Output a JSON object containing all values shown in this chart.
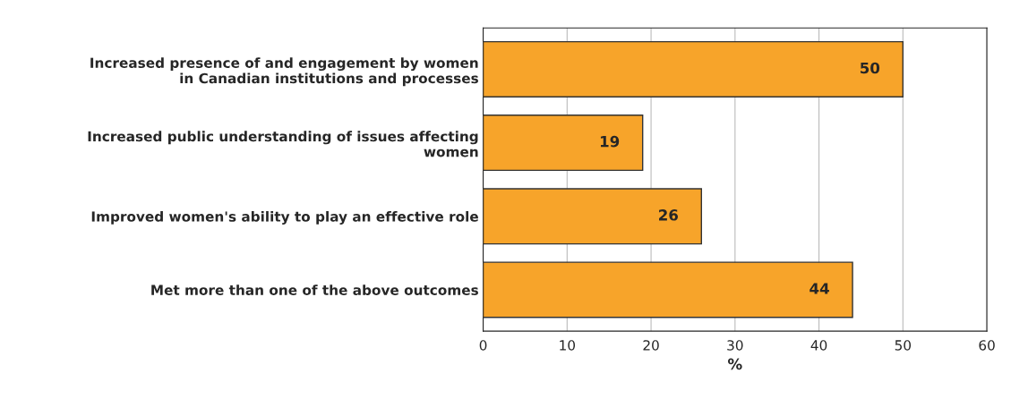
{
  "chart_data": {
    "type": "bar",
    "orientation": "horizontal",
    "categories": [
      "Increased presence of and engagement by women\nin Canadian institutions and processes",
      "Increased public understanding of issues affecting\nwomen",
      "Improved women's ability to play an effective role",
      "Met more than one of the above outcomes"
    ],
    "values": [
      50,
      19,
      26,
      44
    ],
    "color": "#f7a42a",
    "xlim": [
      0,
      60
    ],
    "xticks": [
      0,
      10,
      20,
      30,
      40,
      50,
      60
    ],
    "xlabel": "%",
    "grid": "x",
    "data_labels": true
  }
}
